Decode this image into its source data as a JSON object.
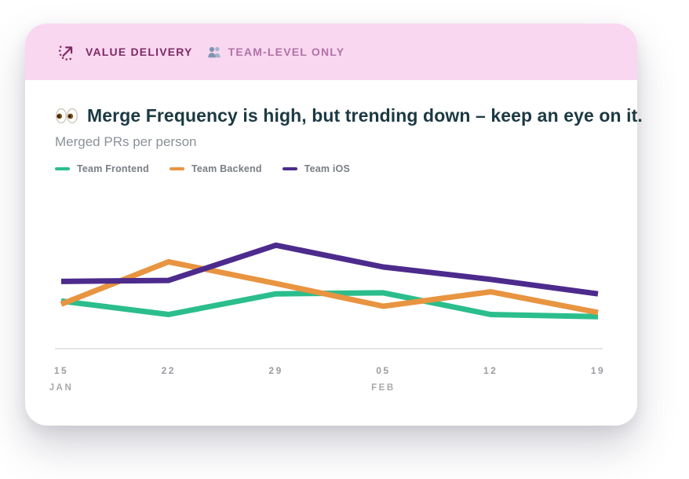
{
  "card": {
    "header": {
      "badge_label": "VALUE DELIVERY",
      "scope_label": "TEAM-LEVEL ONLY",
      "bg_color": "#F9D7F0",
      "badge_color": "#7D2A63",
      "scope_color": "#B172A7"
    },
    "title": "Merge Frequency is high, but trending down – keep an eye on it.",
    "subtitle": "Merged PRs per person"
  },
  "chart_data": {
    "type": "line",
    "title": "Merged PRs per person",
    "categories": [
      "Jan 15",
      "Jan 22",
      "Jan 29",
      "Feb 05",
      "Feb 12",
      "Feb 19"
    ],
    "x_ticks": [
      {
        "day": "15",
        "month": "JAN"
      },
      {
        "day": "22",
        "month": ""
      },
      {
        "day": "29",
        "month": ""
      },
      {
        "day": "05",
        "month": "FEB"
      },
      {
        "day": "12",
        "month": ""
      },
      {
        "day": "19",
        "month": ""
      }
    ],
    "series": [
      {
        "name": "Team Frontend",
        "color": "#2BBE8C",
        "values": [
          4.6,
          3.3,
          5.3,
          5.4,
          3.3,
          3.1
        ]
      },
      {
        "name": "Team Backend",
        "color": "#E89440",
        "values": [
          4.3,
          8.4,
          6.3,
          4.1,
          5.5,
          3.5
        ]
      },
      {
        "name": "Team iOS",
        "color": "#4C2B8D",
        "values": [
          6.5,
          6.6,
          10,
          7.9,
          6.7,
          5.3
        ]
      }
    ],
    "ylim": [
      0,
      12.3
    ],
    "xlabel": "",
    "ylabel": "",
    "grid": false,
    "y_axis_visible": false,
    "legend_position": "top-left",
    "axis_line_color": "#DBDBDE"
  }
}
